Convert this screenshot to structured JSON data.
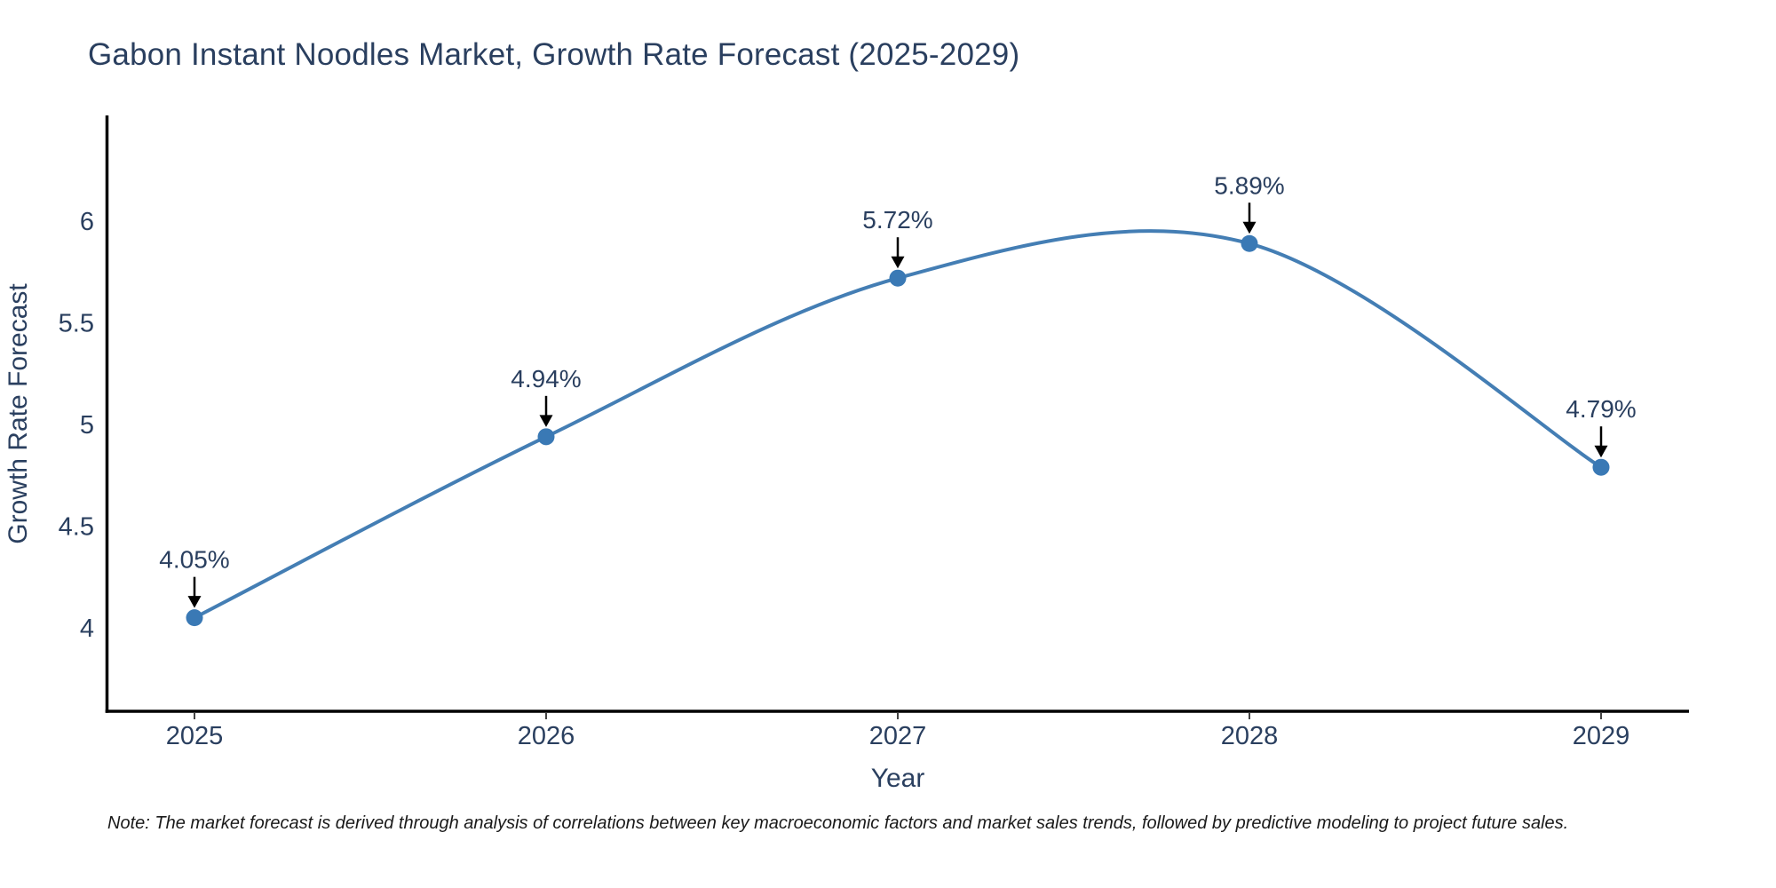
{
  "chart_data": {
    "type": "line",
    "title": "Gabon Instant Noodles Market, Growth Rate Forecast (2025-2029)",
    "xlabel": "Year",
    "ylabel": "Growth Rate Forecast",
    "x": [
      2025,
      2026,
      2027,
      2028,
      2029
    ],
    "series": [
      {
        "name": "Growth Rate Forecast",
        "values": [
          4.05,
          4.94,
          5.72,
          5.89,
          4.79
        ]
      }
    ],
    "point_labels": [
      "4.05%",
      "4.94%",
      "5.72%",
      "5.89%",
      "4.79%"
    ],
    "xtick_labels": [
      "2025",
      "2026",
      "2027",
      "2028",
      "2029"
    ],
    "ytick_values": [
      4,
      4.5,
      5,
      5.5,
      6
    ],
    "ytick_labels": [
      "4",
      "4.5",
      "5",
      "5.5",
      "6"
    ],
    "xlim": [
      2024.75,
      2029.25
    ],
    "ylim": [
      3.59,
      6.52
    ],
    "line_shape": "spline",
    "grid": false,
    "legend": "none",
    "annotations": "value labels with downward arrows pointing to each data point",
    "note": "Note: The market forecast is derived through analysis of correlations between key macroeconomic factors and market sales trends, followed by predictive modeling to project future sales.",
    "colors": {
      "line": "#447eb4",
      "marker": "#3a79b5",
      "axis": "#000000",
      "tick_text": "#2a3f5f",
      "title_text": "#2a3f5f",
      "annotation_text": "#2a3f5f",
      "arrow": "#000000",
      "note_text": "#1a1a1a",
      "background": "#ffffff"
    }
  }
}
